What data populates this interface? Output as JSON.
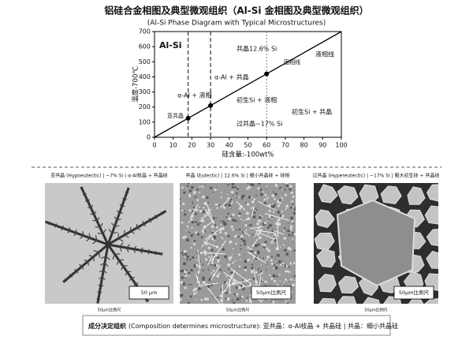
{
  "chart_data": {
    "type": "line",
    "title": "铝硅合金相图及典型微观组织（Al-Si  金相图及典型微观组织）",
    "subtitle": "(Al-Si Phase Diagram with Typical Microstructures)",
    "x_label": "硅含量:-100wt%",
    "y_label": "温度-700℃",
    "xlim": [
      0,
      100
    ],
    "ylim": [
      0,
      700
    ],
    "xticks": [
      0,
      10,
      20,
      30,
      40,
      50,
      60,
      70,
      80,
      90,
      100
    ],
    "yticks": [
      0,
      100,
      200,
      300,
      400,
      500,
      600,
      700
    ],
    "series": [
      {
        "color": "#000000",
        "x": [
          0,
          100
        ],
        "values": [
          0,
          700
        ]
      },
      {
        "color": "#000000",
        "x": [
          18,
          30,
          60
        ],
        "values": [
          126,
          210,
          420
        ],
        "marker": "dot"
      }
    ],
    "vlines": [
      18,
      30,
      60
    ],
    "annotations": [
      "Al-Si",
      "共晶12.6% Si",
      "液相线",
      "固相线",
      "α-Al + 共晶",
      "α-Al + 液相",
      "初生Si + 液相",
      "亚共晶",
      "初生Si + 共晶",
      "过共晶~17% Si"
    ]
  },
  "panels": [
    {
      "caption": "亚共晶 (Hypoeutectic) | ~7% Si | α-Al枝晶 + 共晶硅",
      "scale": "50 µm",
      "note": "50µm比例尺"
    },
    {
      "caption": "共晶 (Eutectic) | 12.6% Si | 细小共晶硅 + 硅相",
      "scale": "50µm比例尺",
      "note": "50µm比例尺"
    },
    {
      "caption": "过共晶 (Hypereutectic) | ~17% Si | 粗大初生硅 + 共晶硅",
      "scale": "50µm比例尺",
      "note": "50µm比例尺"
    }
  ],
  "footer": {
    "bold": "成分决定组织",
    "text": "(Composition determines microstructure): 亚共晶：α-Al枝晶 + 共晶硅 | 共晶：细小共晶硅"
  }
}
